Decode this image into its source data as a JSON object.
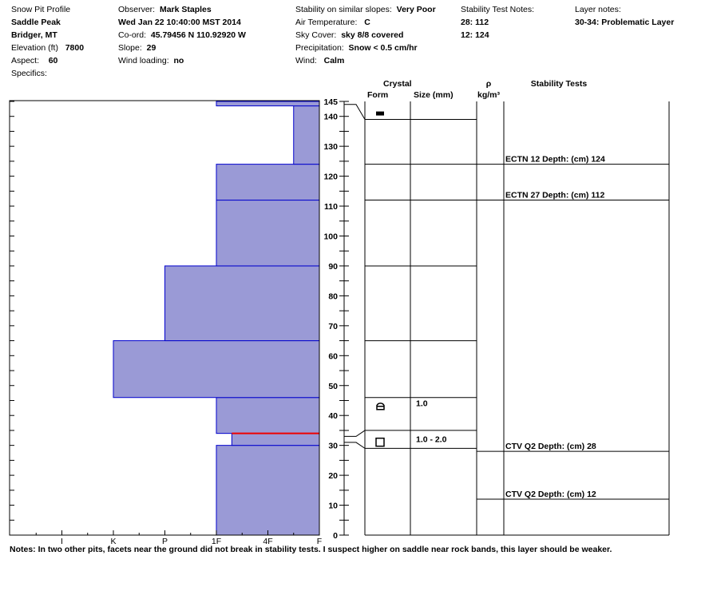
{
  "header": {
    "title": "Snow Pit Profile",
    "location_name": "Saddle Peak",
    "location_region": "Bridger, MT",
    "elevation_label": "Elevation (ft)",
    "elevation_value": "7800",
    "aspect_label": "Aspect:",
    "aspect_value": "60",
    "specifics_label": "Specifics:",
    "observer_label": "Observer:",
    "observer_value": "Mark Staples",
    "date_value": "Wed Jan 22 10:40:00 MST 2014",
    "coord_label": "Co-ord:",
    "coord_value": "45.79456 N 110.92920 W",
    "slope_label": "Slope:",
    "slope_value": "29",
    "wind_loading_label": "Wind loading:",
    "wind_loading_value": "no",
    "stability_label": "Stability on similar slopes:",
    "stability_value": "Very Poor",
    "air_temp_label": "Air Temperature:",
    "air_temp_value": "C",
    "sky_label": "Sky Cover:",
    "sky_value": "sky 8/8 covered",
    "precip_label": "Precipitation:",
    "precip_value": "Snow < 0.5 cm/hr",
    "wind_label": "Wind:",
    "wind_value": "Calm",
    "stability_notes_label": "Stability Test Notes:",
    "stability_notes": [
      "28: 112",
      "12: 124"
    ],
    "layer_notes_label": "Layer notes:",
    "layer_notes_value": "30-34: Problematic Layer"
  },
  "columns": {
    "crystal": "Crystal",
    "form": "Form",
    "size": "Size (mm)",
    "density": "ρ",
    "density_unit": "kg/m³",
    "stability_tests": "Stability Tests"
  },
  "notes": "Notes:  In two other pits, facets near the ground did not break in stability tests. I suspect higher on saddle near rock bands, this layer should be weaker.",
  "colors": {
    "layer_fill": "#9a9ad6",
    "layer_edge": "#0000cc",
    "weak_layer": "#ee0000"
  },
  "chart_data": {
    "type": "bar",
    "orientation": "horizontal",
    "ylim": [
      0,
      145
    ],
    "y_ticks": [
      0,
      10,
      20,
      30,
      40,
      50,
      60,
      70,
      80,
      90,
      100,
      110,
      120,
      130,
      140,
      145
    ],
    "hardness_categories": [
      "I",
      "K",
      "P",
      "1F",
      "4F",
      "F"
    ],
    "hardness_scale": {
      "F": 0,
      "4F": 1,
      "1F": 2,
      "P": 3,
      "K": 4,
      "I": 5
    },
    "layers": [
      {
        "bottom": 0,
        "top": 30,
        "hardness": 2
      },
      {
        "bottom": 30,
        "top": 34,
        "hardness": 1.7
      },
      {
        "bottom": 34,
        "top": 46,
        "hardness": 2
      },
      {
        "bottom": 46,
        "top": 65,
        "hardness": 4
      },
      {
        "bottom": 65,
        "top": 90,
        "hardness": 3
      },
      {
        "bottom": 90,
        "top": 112,
        "hardness": 2
      },
      {
        "bottom": 112,
        "top": 124,
        "hardness": 2
      },
      {
        "bottom": 124,
        "top": 143.5,
        "hardness": 0.5
      },
      {
        "bottom": 143.5,
        "top": 145,
        "hardness": 2
      }
    ],
    "weak_layer_height": 34,
    "crystal_layers": [
      {
        "height": 143.5,
        "symbol": "rect",
        "size": ""
      },
      {
        "height": 46,
        "symbol": "facet-rounding",
        "size": "1.0"
      },
      {
        "height": 34,
        "symbol": "square",
        "size": "1.0 - 2.0"
      }
    ],
    "crystal_boundaries": [
      139,
      124,
      112,
      90,
      65,
      46,
      35,
      29
    ],
    "stability_tests": [
      {
        "label": "ECTN 12  Depth: (cm) 124",
        "height": 124
      },
      {
        "label": "ECTN 27  Depth: (cm) 112",
        "height": 112
      },
      {
        "label": "CTV Q2 Depth: (cm) 28",
        "height": 28
      },
      {
        "label": "CTV Q2 Depth: (cm) 12",
        "height": 12
      }
    ]
  }
}
